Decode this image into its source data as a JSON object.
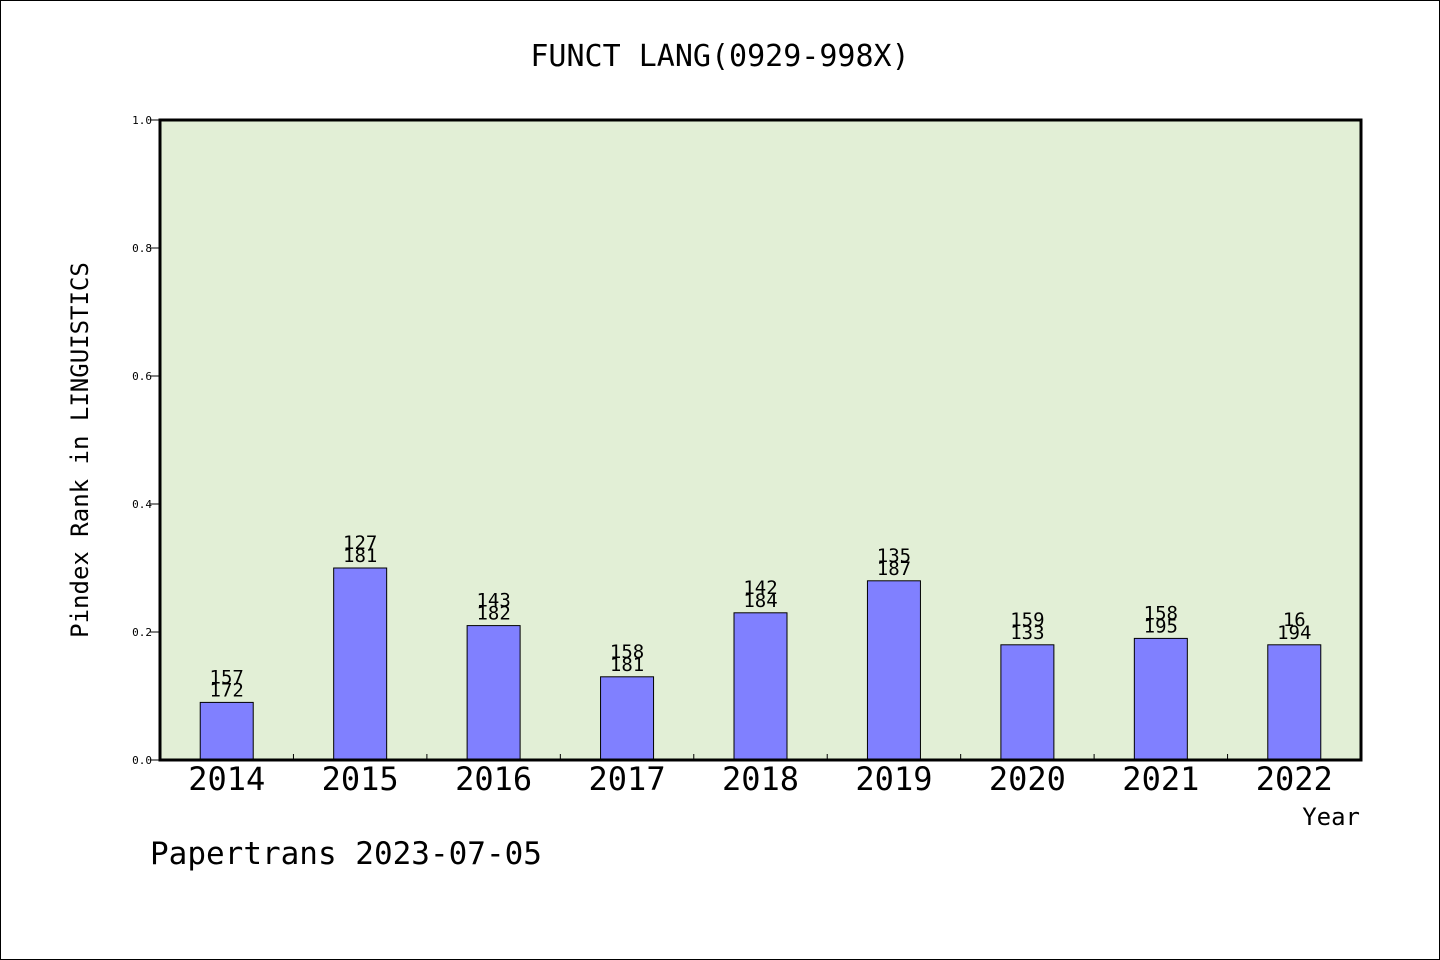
{
  "chart_data": {
    "type": "bar",
    "title": "FUNCT LANG(0929-998X)",
    "xlabel": "Year",
    "ylabel": "Pindex Rank in LINGUISTICS",
    "categories": [
      "2014",
      "2015",
      "2016",
      "2017",
      "2018",
      "2019",
      "2020",
      "2021",
      "2022"
    ],
    "values": [
      0.09,
      0.3,
      0.21,
      0.13,
      0.23,
      0.28,
      0.18,
      0.19,
      0.18
    ],
    "labels_top": [
      "157",
      "127",
      "143",
      "158",
      "142",
      "135",
      "159",
      "158",
      "16"
    ],
    "labels_bottom": [
      "172",
      "181",
      "182",
      "181",
      "184",
      "187",
      "133",
      "195",
      "194"
    ],
    "ylim": [
      0,
      1.0
    ],
    "yticks": [
      "0.0",
      "0.2",
      "0.4",
      "0.6",
      "0.8",
      "1.0"
    ],
    "grid": false,
    "colors": {
      "plot_bg": "#e2efd6",
      "bar": "#8080ff",
      "axis": "#000000"
    }
  },
  "footer": "Papertrans 2023-07-05"
}
